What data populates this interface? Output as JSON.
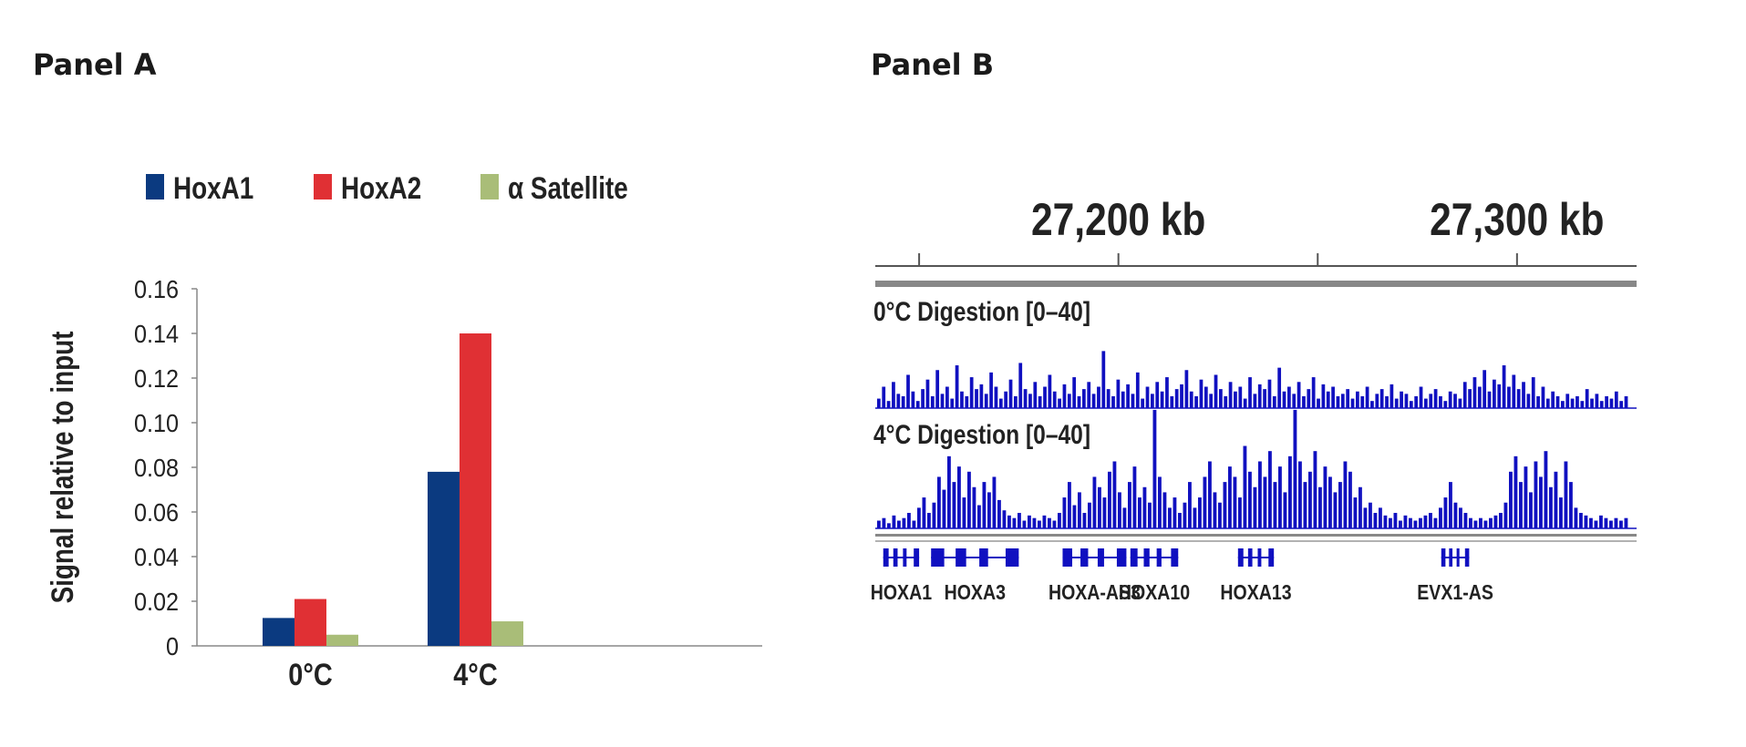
{
  "panels": {
    "a": {
      "title": "Panel A"
    },
    "b": {
      "title": "Panel B"
    }
  },
  "chart_data": [
    {
      "type": "bar",
      "categories": [
        "0°C",
        "4°C"
      ],
      "series": [
        {
          "name": "HoxA1",
          "color": "#0b3a80",
          "values": [
            0.0125,
            0.078
          ]
        },
        {
          "name": "HoxA2",
          "color": "#e03034",
          "values": [
            0.021,
            0.14
          ]
        },
        {
          "name": "α Satellite",
          "color": "#a9bd78",
          "values": [
            0.005,
            0.011
          ]
        }
      ],
      "ylabel": "Signal relative to input",
      "xlabel": "",
      "ylim": [
        0,
        0.16
      ],
      "yticks": [
        "0",
        "0.02",
        "0.04",
        "0.06",
        "0.08",
        "0.10",
        "0.12",
        "0.14",
        "0.16"
      ],
      "grid": false,
      "legend_position": "top"
    },
    {
      "type": "area",
      "xlim_kb": [
        27139,
        27330
      ],
      "coordinate_labels": [
        {
          "label": "27,200 kb",
          "kb": 27200
        },
        {
          "label": "27,300 kb",
          "kb": 27300
        }
      ],
      "minor_ticks_kb": [
        27150,
        27200,
        27250,
        27300
      ],
      "track_color": "#1010c0",
      "tracks": [
        {
          "name": "0°C Digestion",
          "range": "[0–40]",
          "values": [
            4,
            9,
            3,
            11,
            6,
            5,
            14,
            7,
            3,
            8,
            12,
            5,
            16,
            6,
            9,
            4,
            18,
            7,
            5,
            13,
            8,
            10,
            6,
            15,
            9,
            4,
            7,
            12,
            5,
            19,
            8,
            6,
            11,
            5,
            9,
            14,
            7,
            4,
            10,
            6,
            13,
            5,
            8,
            11,
            6,
            9,
            24,
            8,
            5,
            12,
            7,
            10,
            6,
            15,
            4,
            9,
            6,
            11,
            7,
            13,
            5,
            8,
            10,
            16,
            7,
            5,
            12,
            9,
            6,
            14,
            8,
            5,
            11,
            7,
            9,
            4,
            13,
            6,
            10,
            8,
            12,
            5,
            17,
            7,
            9,
            6,
            11,
            5,
            8,
            13,
            4,
            10,
            7,
            9,
            5,
            6,
            8,
            4,
            7,
            5,
            9,
            3,
            6,
            8,
            5,
            10,
            4,
            7,
            6,
            3,
            5,
            9,
            4,
            6,
            8,
            5,
            3,
            7,
            6,
            4,
            11,
            8,
            13,
            9,
            16,
            7,
            12,
            10,
            18,
            9,
            14,
            8,
            11,
            6,
            13,
            5,
            9,
            4,
            7,
            5,
            3,
            6,
            4,
            5,
            3,
            8,
            4,
            6,
            3,
            5,
            4,
            7,
            3,
            5
          ]
        },
        {
          "name": "4°C Digestion",
          "range": "[0–40]",
          "values": [
            3,
            4,
            2,
            5,
            3,
            4,
            6,
            3,
            8,
            12,
            6,
            10,
            20,
            15,
            28,
            18,
            24,
            12,
            22,
            16,
            9,
            18,
            14,
            20,
            11,
            7,
            5,
            4,
            6,
            3,
            5,
            4,
            3,
            5,
            4,
            3,
            6,
            12,
            18,
            9,
            14,
            6,
            10,
            20,
            16,
            12,
            22,
            26,
            14,
            8,
            18,
            24,
            12,
            16,
            10,
            46,
            20,
            14,
            8,
            12,
            6,
            10,
            18,
            8,
            12,
            20,
            26,
            14,
            10,
            18,
            24,
            20,
            12,
            32,
            22,
            16,
            26,
            20,
            30,
            18,
            24,
            14,
            28,
            46,
            26,
            18,
            22,
            30,
            16,
            24,
            20,
            14,
            18,
            26,
            22,
            12,
            16,
            8,
            10,
            6,
            8,
            5,
            4,
            6,
            3,
            5,
            4,
            3,
            4,
            5,
            6,
            4,
            8,
            12,
            18,
            10,
            8,
            6,
            4,
            3,
            4,
            3,
            4,
            5,
            6,
            10,
            22,
            28,
            18,
            24,
            14,
            26,
            20,
            30,
            16,
            22,
            12,
            26,
            18,
            8,
            6,
            5,
            4,
            3,
            5,
            4,
            3,
            4,
            3,
            4
          ]
        }
      ],
      "genes": [
        {
          "name": "HOXA1",
          "start_kb": 27141,
          "end_kb": 27150
        },
        {
          "name": "HOXA3",
          "start_kb": 27153,
          "end_kb": 27175
        },
        {
          "name": "HOXA-AS3",
          "start_kb": 27186,
          "end_kb": 27202
        },
        {
          "name": "HOXA10",
          "start_kb": 27203,
          "end_kb": 27215
        },
        {
          "name": "HOXA13",
          "start_kb": 27230,
          "end_kb": 27239
        },
        {
          "name": "EVX1-AS",
          "start_kb": 27281,
          "end_kb": 27288
        }
      ]
    }
  ]
}
